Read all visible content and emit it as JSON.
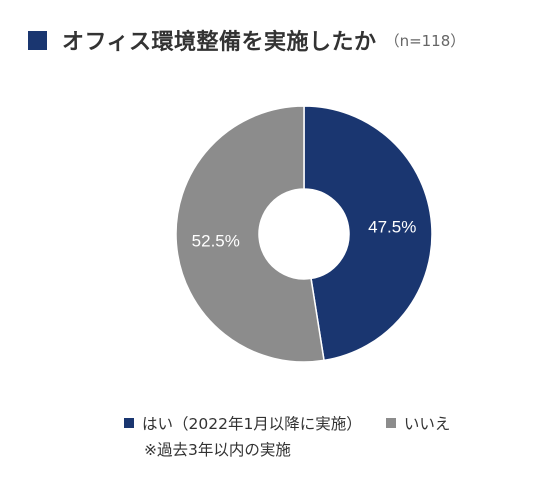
{
  "title": "オフィス環境整備を実施したか",
  "title_note": "（n=118）",
  "colors": {
    "title_square": "#1a3670",
    "yes": "#1a3670",
    "no": "#8c8c8c"
  },
  "chart_data": {
    "type": "pie",
    "donut": true,
    "categories": [
      "はい（2022年1月以降に実施）",
      "いいえ"
    ],
    "values": [
      47.5,
      52.5
    ],
    "data_labels": [
      "47.5%",
      "52.5%"
    ],
    "colors": [
      "#1a3670",
      "#8c8c8c"
    ],
    "start": "12 o'clock",
    "direction": "clockwise",
    "legend": "bottom",
    "title": "オフィス環境整備を実施したか"
  },
  "legend": {
    "items": [
      {
        "label": "はい（2022年1月以降に実施）"
      },
      {
        "label": "いいえ"
      }
    ],
    "note": "※過去3年以内の実施"
  }
}
